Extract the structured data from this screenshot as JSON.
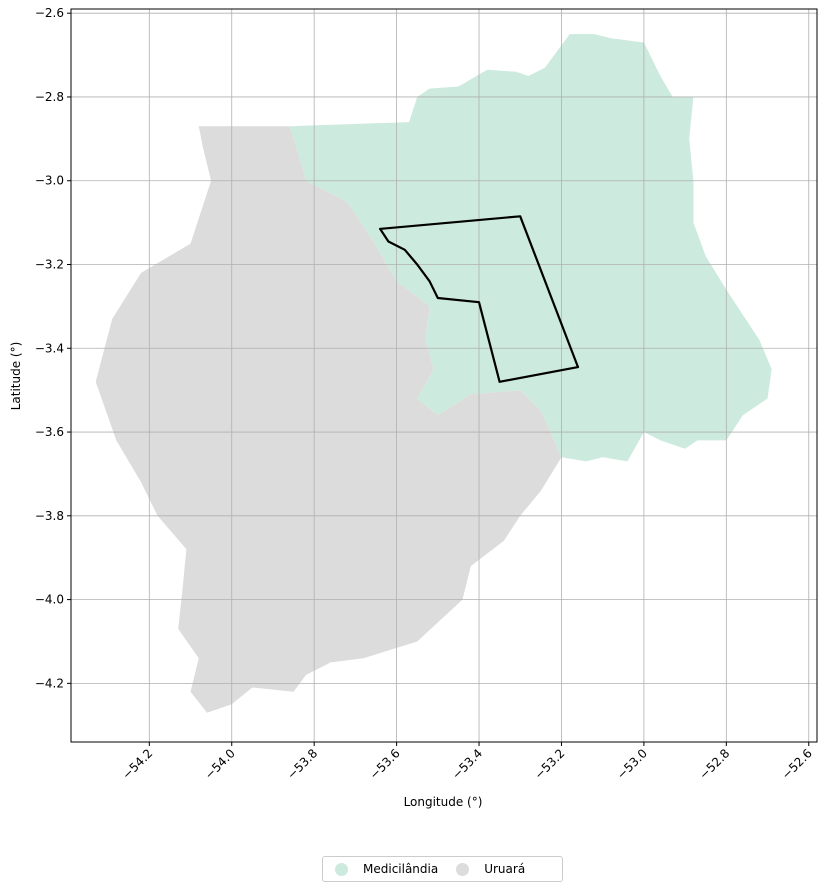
{
  "chart_data": {
    "type": "map",
    "xlabel": "Longitude (°)",
    "ylabel": "Latitude (°)",
    "xlim": [
      -54.39,
      -52.58
    ],
    "ylim": [
      -4.34,
      -2.59
    ],
    "x_ticks": [
      "−54.2",
      "−54.0",
      "−53.8",
      "−53.6",
      "−53.4",
      "−53.2",
      "−53.0",
      "−52.8",
      "−52.6"
    ],
    "y_ticks": [
      "−2.6",
      "−2.8",
      "−3.0",
      "−3.2",
      "−3.4",
      "−3.6",
      "−3.8",
      "−4.0",
      "−4.2"
    ],
    "x_tick_values": [
      -54.2,
      -54.0,
      -53.8,
      -53.6,
      -53.4,
      -53.2,
      -53.0,
      -52.8,
      -52.6
    ],
    "y_tick_values": [
      -2.6,
      -2.8,
      -3.0,
      -3.2,
      -3.4,
      -3.6,
      -3.8,
      -4.0,
      -4.2
    ],
    "x_tick_rotation": 45,
    "grid": true,
    "legend_position": "bottom-center",
    "regions": [
      {
        "name": "Medicilândia",
        "color": "#cdeade",
        "polygon": [
          [
            -53.86,
            -2.87
          ],
          [
            -53.57,
            -2.86
          ],
          [
            -53.55,
            -2.8
          ],
          [
            -53.52,
            -2.78
          ],
          [
            -53.45,
            -2.775
          ],
          [
            -53.38,
            -2.735
          ],
          [
            -53.31,
            -2.74
          ],
          [
            -53.28,
            -2.75
          ],
          [
            -53.24,
            -2.73
          ],
          [
            -53.18,
            -2.65
          ],
          [
            -53.12,
            -2.65
          ],
          [
            -53.08,
            -2.66
          ],
          [
            -53.0,
            -2.67
          ],
          [
            -52.96,
            -2.75
          ],
          [
            -52.93,
            -2.8
          ],
          [
            -52.88,
            -2.8
          ],
          [
            -52.89,
            -2.9
          ],
          [
            -52.88,
            -3.0
          ],
          [
            -52.88,
            -3.1
          ],
          [
            -52.85,
            -3.18
          ],
          [
            -52.8,
            -3.26
          ],
          [
            -52.76,
            -3.32
          ],
          [
            -52.72,
            -3.38
          ],
          [
            -52.69,
            -3.45
          ],
          [
            -52.7,
            -3.52
          ],
          [
            -52.76,
            -3.56
          ],
          [
            -52.8,
            -3.62
          ],
          [
            -52.87,
            -3.62
          ],
          [
            -52.9,
            -3.64
          ],
          [
            -52.96,
            -3.62
          ],
          [
            -53.0,
            -3.6
          ],
          [
            -53.04,
            -3.67
          ],
          [
            -53.1,
            -3.66
          ],
          [
            -53.14,
            -3.67
          ],
          [
            -53.2,
            -3.66
          ],
          [
            -53.25,
            -3.55
          ],
          [
            -53.3,
            -3.5
          ],
          [
            -53.42,
            -3.51
          ],
          [
            -53.5,
            -3.56
          ],
          [
            -53.55,
            -3.52
          ],
          [
            -53.51,
            -3.45
          ],
          [
            -53.53,
            -3.38
          ],
          [
            -53.52,
            -3.3
          ],
          [
            -53.6,
            -3.24
          ],
          [
            -53.66,
            -3.14
          ],
          [
            -53.72,
            -3.05
          ],
          [
            -53.82,
            -3.0
          ],
          [
            -53.84,
            -2.93
          ]
        ]
      },
      {
        "name": "Uruará",
        "color": "#dcdcdc",
        "polygon": [
          [
            -54.08,
            -2.87
          ],
          [
            -53.86,
            -2.87
          ],
          [
            -53.84,
            -2.93
          ],
          [
            -53.82,
            -3.0
          ],
          [
            -53.72,
            -3.05
          ],
          [
            -53.66,
            -3.14
          ],
          [
            -53.6,
            -3.24
          ],
          [
            -53.52,
            -3.3
          ],
          [
            -53.53,
            -3.38
          ],
          [
            -53.51,
            -3.45
          ],
          [
            -53.55,
            -3.52
          ],
          [
            -53.5,
            -3.56
          ],
          [
            -53.42,
            -3.51
          ],
          [
            -53.3,
            -3.5
          ],
          [
            -53.25,
            -3.55
          ],
          [
            -53.2,
            -3.66
          ],
          [
            -53.25,
            -3.74
          ],
          [
            -53.3,
            -3.8
          ],
          [
            -53.34,
            -3.86
          ],
          [
            -53.42,
            -3.92
          ],
          [
            -53.44,
            -4.0
          ],
          [
            -53.55,
            -4.1
          ],
          [
            -53.68,
            -4.14
          ],
          [
            -53.76,
            -4.15
          ],
          [
            -53.82,
            -4.18
          ],
          [
            -53.85,
            -4.22
          ],
          [
            -53.95,
            -4.21
          ],
          [
            -54.0,
            -4.25
          ],
          [
            -54.06,
            -4.27
          ],
          [
            -54.1,
            -4.22
          ],
          [
            -54.08,
            -4.14
          ],
          [
            -54.13,
            -4.07
          ],
          [
            -54.12,
            -3.98
          ],
          [
            -54.11,
            -3.88
          ],
          [
            -54.18,
            -3.8
          ],
          [
            -54.22,
            -3.72
          ],
          [
            -54.28,
            -3.62
          ],
          [
            -54.33,
            -3.48
          ],
          [
            -54.29,
            -3.33
          ],
          [
            -54.22,
            -3.22
          ],
          [
            -54.1,
            -3.15
          ],
          [
            -54.05,
            -3.0
          ],
          [
            -54.07,
            -2.92
          ]
        ]
      }
    ],
    "outline": {
      "color": "#000000",
      "polygon": [
        [
          -53.64,
          -3.115
        ],
        [
          -53.3,
          -3.085
        ],
        [
          -53.16,
          -3.445
        ],
        [
          -53.35,
          -3.48
        ],
        [
          -53.4,
          -3.29
        ],
        [
          -53.5,
          -3.28
        ],
        [
          -53.52,
          -3.24
        ],
        [
          -53.55,
          -3.2
        ],
        [
          -53.58,
          -3.165
        ],
        [
          -53.62,
          -3.145
        ]
      ]
    }
  },
  "legend": {
    "items": [
      {
        "label": "Medicilândia",
        "color": "#cdeade"
      },
      {
        "label": "Uruará",
        "color": "#dcdcdc"
      }
    ]
  }
}
